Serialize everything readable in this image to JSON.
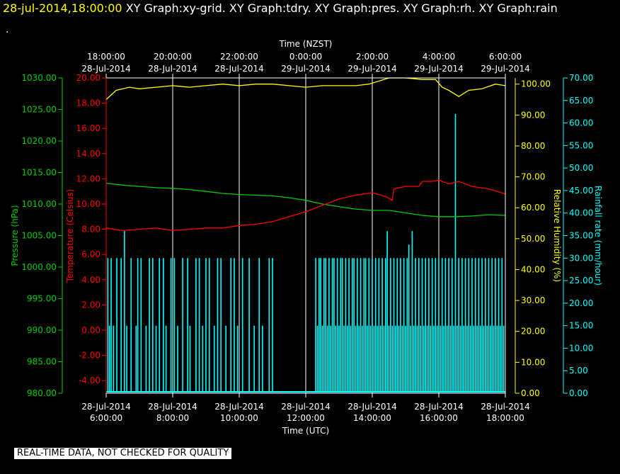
{
  "header": {
    "date_label": "28-jul-2014,18:00:00",
    "graphs_label": "XY Graph:xy-grid.  XY Graph:tdry.  XY Graph:pres.  XY Graph:rh.  XY Graph:rain",
    "dot": "."
  },
  "disclaimer": "REAL-TIME DATA, NOT CHECKED FOR QUALITY",
  "colors": {
    "pressure": "#00cc00",
    "temperature": "#ff0000",
    "humidity": "#ffff00",
    "rain": "#00ffff",
    "grid": "#ffffff",
    "frame": "#ffffff"
  },
  "chart_data": {
    "type": "line",
    "x_top_title": "Time (NZST)",
    "x_bottom_title": "Time (UTC)",
    "x_top_ticks": [
      [
        "18:00:00",
        "28-Jul-2014"
      ],
      [
        "20:00:00",
        "28-Jul-2014"
      ],
      [
        "22:00:00",
        "28-Jul-2014"
      ],
      [
        "0:00:00",
        "29-Jul-2014"
      ],
      [
        "2:00:00",
        "29-Jul-2014"
      ],
      [
        "4:00:00",
        "29-Jul-2014"
      ],
      [
        "6:00:00",
        "29-Jul-2014"
      ]
    ],
    "x_bottom_ticks": [
      [
        "28-Jul-2014",
        "6:00:00"
      ],
      [
        "28-Jul-2014",
        "8:00:00"
      ],
      [
        "28-Jul-2014",
        "10:00:00"
      ],
      [
        "28-Jul-2014",
        "12:00:00"
      ],
      [
        "28-Jul-2014",
        "14:00:00"
      ],
      [
        "28-Jul-2014",
        "16:00:00"
      ],
      [
        "28-Jul-2014",
        "18:00:00"
      ]
    ],
    "x_range_hours": [
      6,
      18
    ],
    "grid": "vertical lines at 2-hour intervals",
    "axes": {
      "pressure": {
        "label": "Pressure (hPa)",
        "ylim": [
          980,
          1030
        ],
        "ticks": [
          "980.00",
          "985.00",
          "990.00",
          "995.00",
          "1000.00",
          "1005.00",
          "1010.00",
          "1015.00",
          "1020.00",
          "1025.00",
          "1030.00"
        ]
      },
      "temperature": {
        "label": "Temperature (Celsius)",
        "ylim": [
          -5,
          20
        ],
        "ticks": [
          "-4.00",
          "-2.00",
          "0.00",
          "2.00",
          "4.00",
          "6.00",
          "8.00",
          "10.00",
          "12.00",
          "14.00",
          "16.00",
          "18.00",
          "20.00"
        ]
      },
      "humidity": {
        "label": "Relative Humidity (%)",
        "ylim": [
          0,
          102
        ],
        "ticks": [
          "0.00",
          "10.00",
          "20.00",
          "30.00",
          "40.00",
          "50.00",
          "60.00",
          "70.00",
          "80.00",
          "90.00",
          "100.00"
        ]
      },
      "rain": {
        "label": "Rainfall rate (mm/hour)",
        "ylim": [
          0,
          70
        ],
        "ticks": [
          "0.00",
          "5.00",
          "10.00",
          "15.00",
          "20.00",
          "25.00",
          "30.00",
          "35.00",
          "40.00",
          "45.00",
          "50.00",
          "55.00",
          "60.00",
          "65.00",
          "70.00"
        ]
      }
    },
    "series": [
      {
        "key": "humidity",
        "axis": "humidity",
        "x": [
          6.0,
          6.3,
          6.7,
          7.0,
          7.5,
          8.0,
          8.5,
          9.0,
          9.5,
          10.0,
          10.5,
          11.0,
          11.5,
          12.0,
          12.5,
          13.0,
          13.5,
          13.9,
          14.2,
          14.5,
          15.0,
          15.5,
          15.9,
          16.1,
          16.3,
          16.6,
          16.9,
          17.3,
          17.7,
          18.0
        ],
        "y": [
          95,
          98,
          99,
          98.5,
          99,
          99.5,
          99,
          99.5,
          100,
          99.5,
          100,
          100,
          99.5,
          99,
          99.5,
          99.5,
          99.5,
          100,
          101,
          102,
          102,
          101.5,
          101.5,
          99,
          98,
          96,
          98,
          98.5,
          100,
          99.5
        ]
      },
      {
        "key": "pressure",
        "axis": "pressure",
        "x": [
          6.0,
          6.5,
          7.0,
          7.5,
          8.0,
          8.5,
          9.0,
          9.5,
          10.0,
          10.5,
          11.0,
          11.5,
          12.0,
          12.5,
          13.0,
          13.5,
          14.0,
          14.5,
          15.0,
          15.5,
          16.0,
          16.5,
          17.0,
          17.5,
          18.0
        ],
        "y": [
          1013.3,
          1013.0,
          1012.8,
          1012.6,
          1012.5,
          1012.3,
          1012.0,
          1011.7,
          1011.5,
          1011.4,
          1011.3,
          1011.0,
          1010.6,
          1010.0,
          1009.6,
          1009.2,
          1009.0,
          1009.0,
          1008.6,
          1008.2,
          1008.0,
          1008.0,
          1008.1,
          1008.3,
          1008.2
        ]
      },
      {
        "key": "temperature",
        "axis": "temperature",
        "x": [
          6.0,
          6.5,
          7.0,
          7.5,
          8.0,
          8.5,
          9.0,
          9.5,
          10.0,
          10.5,
          11.0,
          11.5,
          12.0,
          12.5,
          13.0,
          13.5,
          14.0,
          14.4,
          14.6,
          14.65,
          15.0,
          15.4,
          15.5,
          15.8,
          16.0,
          16.3,
          16.6,
          17.0,
          17.5,
          18.0
        ],
        "y": [
          8.1,
          7.9,
          8.0,
          8.1,
          7.9,
          8.0,
          8.1,
          8.1,
          8.3,
          8.4,
          8.6,
          9.0,
          9.4,
          9.9,
          10.4,
          10.7,
          10.9,
          10.6,
          10.3,
          11.2,
          11.4,
          11.4,
          11.8,
          11.8,
          11.9,
          11.6,
          11.8,
          11.4,
          11.2,
          10.8
        ]
      }
    ],
    "rain_series": {
      "key": "rain",
      "axis": "rain",
      "style": "vertical bars",
      "x": [
        6.05,
        6.1,
        6.15,
        6.22,
        6.32,
        6.45,
        6.55,
        6.62,
        6.75,
        6.9,
        6.95,
        7.05,
        7.2,
        7.3,
        7.4,
        7.5,
        7.6,
        7.72,
        7.8,
        7.95,
        8.05,
        8.15,
        8.3,
        8.45,
        8.52,
        8.7,
        8.8,
        8.9,
        9.0,
        9.1,
        9.25,
        9.35,
        9.45,
        9.6,
        9.75,
        9.85,
        9.95,
        10.1,
        10.3,
        10.45,
        10.6,
        10.7,
        10.9,
        11.0,
        12.3,
        12.35,
        12.4,
        12.45,
        12.5,
        12.55,
        12.6,
        12.65,
        12.7,
        12.75,
        12.8,
        12.85,
        12.9,
        12.95,
        13.0,
        13.05,
        13.1,
        13.15,
        13.2,
        13.25,
        13.3,
        13.35,
        13.4,
        13.45,
        13.5,
        13.55,
        13.6,
        13.65,
        13.7,
        13.75,
        13.8,
        13.85,
        13.9,
        13.95,
        14.0,
        14.05,
        14.1,
        14.15,
        14.2,
        14.25,
        14.3,
        14.35,
        14.4,
        14.45,
        14.5,
        14.55,
        14.6,
        14.65,
        14.7,
        14.75,
        14.8,
        14.85,
        14.9,
        14.95,
        15.0,
        15.05,
        15.1,
        15.15,
        15.2,
        15.25,
        15.3,
        15.35,
        15.4,
        15.45,
        15.5,
        15.55,
        15.6,
        15.65,
        15.7,
        15.75,
        15.8,
        15.85,
        15.9,
        15.95,
        16.0,
        16.05,
        16.1,
        16.15,
        16.2,
        16.25,
        16.3,
        16.35,
        16.4,
        16.45,
        16.5,
        16.55,
        16.6,
        16.65,
        16.7,
        16.75,
        16.8,
        16.85,
        16.9,
        16.95,
        17.0,
        17.05,
        17.1,
        17.15,
        17.2,
        17.25,
        17.3,
        17.35,
        17.4,
        17.45,
        17.5,
        17.55,
        17.6,
        17.65,
        17.7,
        17.75,
        17.8,
        17.85,
        17.9,
        17.95
      ],
      "y": [
        30,
        15,
        30,
        15,
        30,
        30,
        36,
        15,
        30,
        15,
        30,
        30,
        15,
        30,
        30,
        15,
        30,
        30,
        15,
        30,
        30,
        15,
        30,
        30,
        15,
        30,
        30,
        15,
        30,
        30,
        15,
        30,
        30,
        15,
        30,
        30,
        15,
        30,
        30,
        15,
        30,
        15,
        30,
        30,
        30,
        15,
        30,
        30,
        15,
        30,
        30,
        15,
        30,
        15,
        30,
        30,
        15,
        30,
        15,
        30,
        30,
        15,
        30,
        15,
        30,
        15,
        30,
        30,
        15,
        30,
        15,
        30,
        15,
        30,
        30,
        15,
        30,
        15,
        30,
        15,
        30,
        15,
        30,
        15,
        30,
        15,
        30,
        36,
        15,
        30,
        15,
        30,
        15,
        30,
        15,
        30,
        15,
        30,
        15,
        30,
        33,
        15,
        36,
        15,
        30,
        15,
        30,
        15,
        30,
        15,
        30,
        15,
        30,
        15,
        30,
        15,
        30,
        15,
        30,
        15,
        30,
        15,
        30,
        15,
        30,
        15,
        30,
        15,
        62,
        15,
        30,
        15,
        30,
        15,
        30,
        15,
        30,
        15,
        30,
        15,
        30,
        15,
        30,
        15,
        30,
        15,
        30,
        15,
        30,
        15,
        30,
        15,
        30,
        15,
        30,
        15,
        30,
        15
      ]
    }
  }
}
